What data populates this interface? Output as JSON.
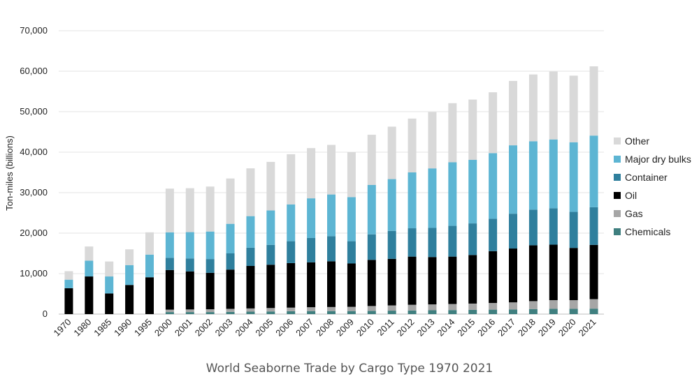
{
  "chart_data": {
    "type": "bar",
    "stacked": true,
    "title": "World Seaborne Trade by Cargo Type 1970 2021",
    "xlabel": "",
    "ylabel": "Ton-miles (billions)",
    "ylim": [
      0,
      70000
    ],
    "yticks": [
      "0",
      "10,000",
      "20,000",
      "30,000",
      "40,000",
      "50,000",
      "60,000",
      "70,000"
    ],
    "grid": true,
    "legend_position": "right",
    "categories": [
      "1970",
      "1980",
      "1985",
      "1990",
      "1995",
      "2000",
      "2001",
      "2002",
      "2003",
      "2004",
      "2005",
      "2006",
      "2007",
      "2008",
      "2009",
      "2010",
      "2011",
      "2012",
      "2013",
      "2014",
      "2015",
      "2016",
      "2017",
      "2018",
      "2019",
      "2020",
      "2021"
    ],
    "series": [
      {
        "name": "Chemicals",
        "color": "#3f7f7f",
        "values": [
          0,
          0,
          0,
          0,
          0,
          500,
          500,
          500,
          550,
          600,
          650,
          700,
          750,
          750,
          750,
          800,
          850,
          900,
          950,
          1000,
          1050,
          1100,
          1150,
          1250,
          1300,
          1300,
          1350
        ]
      },
      {
        "name": "Gas",
        "color": "#a6a6a6",
        "values": [
          0,
          0,
          0,
          0,
          0,
          600,
          650,
          700,
          750,
          800,
          850,
          900,
          950,
          1000,
          1050,
          1200,
          1300,
          1400,
          1450,
          1500,
          1550,
          1650,
          1750,
          1950,
          2150,
          2150,
          2350
        ]
      },
      {
        "name": "Oil",
        "color": "#000000",
        "values": [
          6400,
          9300,
          5100,
          7200,
          9100,
          9800,
          9400,
          9000,
          9700,
          10500,
          10700,
          11000,
          11100,
          11300,
          10700,
          11400,
          11500,
          11900,
          11700,
          11700,
          12000,
          12800,
          13300,
          13800,
          13700,
          12900,
          13400
        ]
      },
      {
        "name": "Container",
        "color": "#2f7f9d",
        "values": [
          0,
          0,
          0,
          0,
          0,
          3000,
          3200,
          3400,
          4000,
          4500,
          4900,
          5400,
          6000,
          6200,
          5500,
          6300,
          6900,
          7000,
          7200,
          7600,
          7800,
          8000,
          8600,
          8800,
          9000,
          8900,
          9300
        ]
      },
      {
        "name": "Major dry bulks",
        "color": "#5db5d3",
        "values": [
          2100,
          3900,
          4200,
          4900,
          5600,
          6300,
          6500,
          6800,
          7300,
          7800,
          8500,
          9100,
          9800,
          10300,
          10900,
          12200,
          12800,
          13800,
          14700,
          15700,
          15700,
          16200,
          16900,
          16900,
          17000,
          17200,
          17700
        ]
      },
      {
        "name": "Other",
        "color": "#d9d9d9",
        "values": [
          2100,
          3500,
          3700,
          3900,
          5500,
          10800,
          10850,
          11100,
          11200,
          11800,
          12000,
          12400,
          12400,
          12250,
          11100,
          12400,
          12950,
          13300,
          13900,
          14600,
          14900,
          15050,
          15900,
          16500,
          16750,
          16450,
          17100
        ]
      }
    ]
  }
}
